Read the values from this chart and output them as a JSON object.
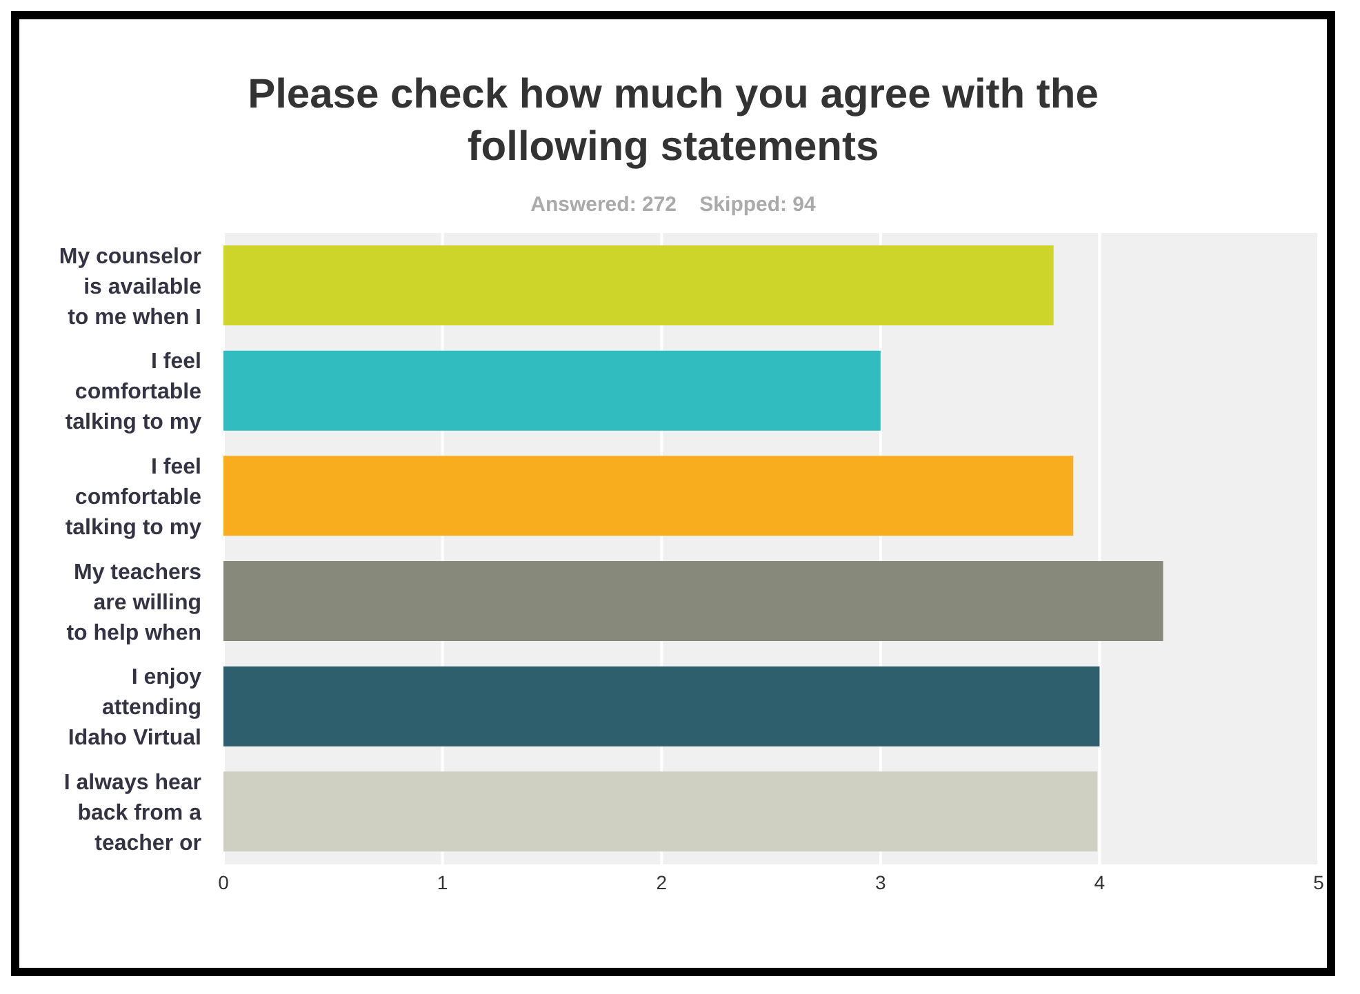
{
  "chart_data": {
    "type": "bar",
    "orientation": "horizontal",
    "title": "Please check how much you agree with the following statements",
    "subtitle": "Answered: 272    Skipped: 94",
    "categories": [
      "My counselor is available to me when I",
      "I feel comfortable talking to my",
      "I feel comfortable talking to my",
      "My teachers are willing to help when",
      "I enjoy attending Idaho Virtual",
      "I always hear back from a teacher or"
    ],
    "values": [
      3.79,
      3.0,
      3.88,
      4.29,
      4.0,
      3.99
    ],
    "colors": [
      "#cdd42a",
      "#31bdbf",
      "#f7ad1e",
      "#878a7a",
      "#2e5f6c",
      "#cfcfc2"
    ],
    "xlim": [
      0,
      5
    ],
    "xticks": [
      0,
      1,
      2,
      3,
      4,
      5
    ],
    "grid": "x"
  }
}
